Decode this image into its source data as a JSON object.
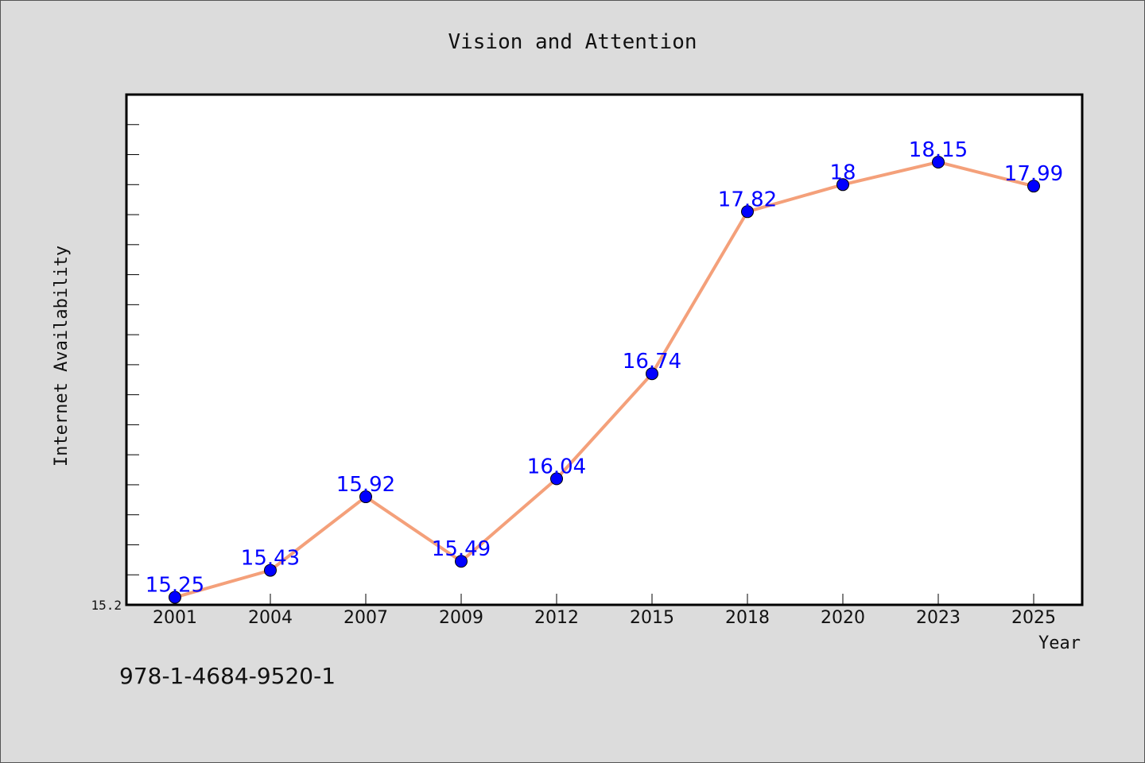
{
  "chart_data": {
    "type": "line",
    "title": "Vision and Attention",
    "xlabel": "Year",
    "ylabel": "Internet Availability",
    "categories": [
      "2001",
      "2004",
      "2007",
      "2009",
      "2012",
      "2015",
      "2018",
      "2020",
      "2023",
      "2025"
    ],
    "values": [
      15.25,
      15.43,
      15.92,
      15.49,
      16.04,
      16.74,
      17.82,
      18,
      18.15,
      17.99
    ],
    "data_labels": [
      "15.25",
      "15.43",
      "15.92",
      "15.49",
      "16.04",
      "16.74",
      "17.82",
      "18",
      "18.15",
      "17.99"
    ],
    "y_tick_labels": [
      "15.2"
    ],
    "ylim": [
      15.2,
      18.6
    ],
    "grid": false,
    "line_color": "#f4a07a",
    "marker_color": "#0000ff",
    "label_color": "#0000ff"
  },
  "footer": {
    "isbn": "978-1-4684-9520-1"
  }
}
